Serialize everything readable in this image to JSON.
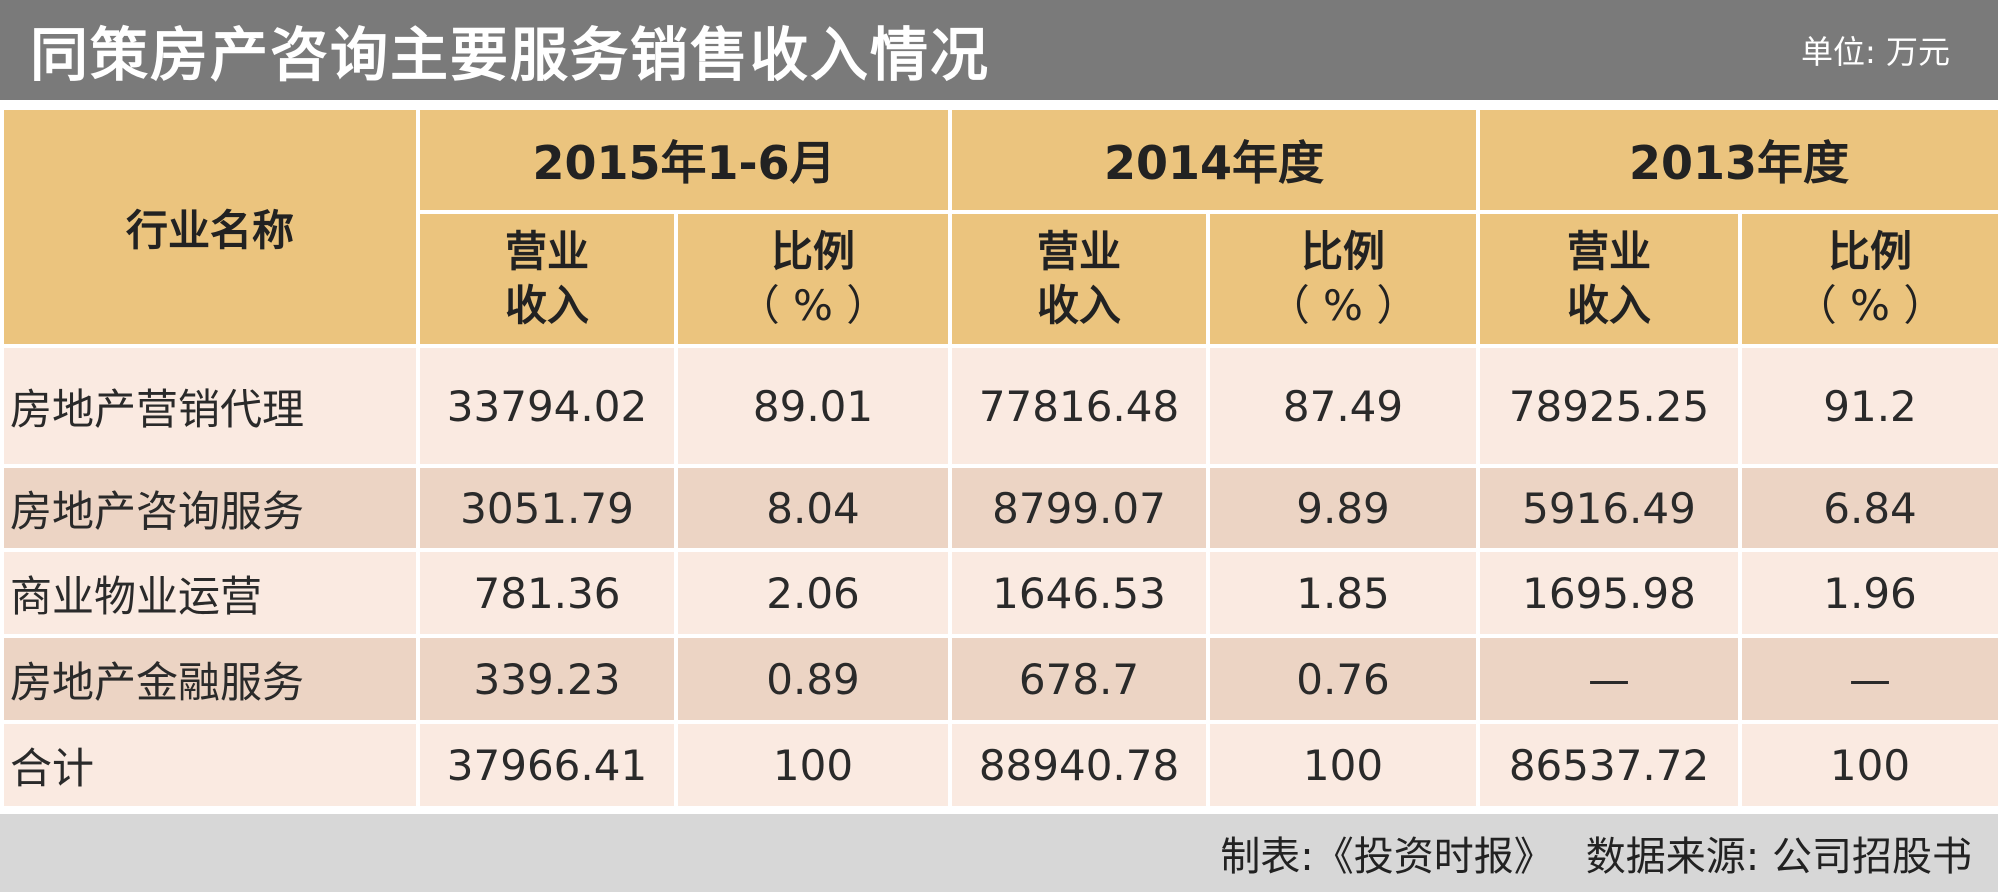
{
  "title": "同策房产咨询主要服务销售收入情况",
  "unit": "单位: 万元",
  "table": {
    "industry_header": "行业名称",
    "periods": [
      "2015年1-6月",
      "2014年度",
      "2013年度"
    ],
    "sub_headers": {
      "revenue_line1": "营业",
      "revenue_line2": "收入",
      "ratio_line1": "比例",
      "ratio_line2": "（ % ）"
    },
    "rows": [
      {
        "name": "房地产营销代理",
        "values": [
          "33794.02",
          "89.01",
          "77816.48",
          "87.49",
          "78925.25",
          "91.2"
        ]
      },
      {
        "name": "房地产咨询服务",
        "values": [
          "3051.79",
          "8.04",
          "8799.07",
          "9.89",
          "5916.49",
          "6.84"
        ]
      },
      {
        "name": "商业物业运营",
        "values": [
          "781.36",
          "2.06",
          "1646.53",
          "1.85",
          "1695.98",
          "1.96"
        ]
      },
      {
        "name": "房地产金融服务",
        "values": [
          "339.23",
          "0.89",
          "678.7",
          "0.76",
          "—",
          "—"
        ]
      },
      {
        "name": "合计",
        "values": [
          "37966.41",
          "100",
          "88940.78",
          "100",
          "86537.72",
          "100"
        ]
      }
    ]
  },
  "footer": {
    "maker": "制表:《投资时报》",
    "source": "数据来源: 公司招股书"
  }
}
